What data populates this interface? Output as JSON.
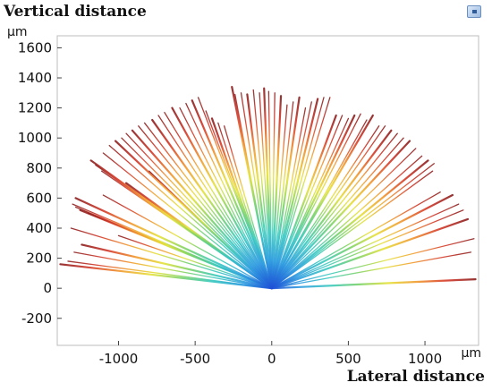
{
  "chart_data": {
    "type": "line",
    "title": "",
    "ylabel": "Vertical distance",
    "yunit": "μm",
    "xlabel": "Lateral distance",
    "xunit": "μm",
    "xlim": [
      -1400,
      1350
    ],
    "ylim": [
      -380,
      1680
    ],
    "xticks": [
      -1000,
      -500,
      0,
      500,
      1000
    ],
    "yticks": [
      -200,
      0,
      200,
      400,
      600,
      800,
      1000,
      1200,
      1400,
      1600
    ],
    "grid": false,
    "colormap": [
      "#1f4fd6",
      "#2f9ee0",
      "#39c9c0",
      "#7ad36a",
      "#e6e23a",
      "#f29a2e",
      "#d63a2a",
      "#8c1f1f"
    ],
    "origin": [
      0,
      0
    ],
    "ray_endpoints": [
      [
        -1380,
        160
      ],
      [
        -1330,
        180
      ],
      [
        -1290,
        240
      ],
      [
        -1240,
        290
      ],
      [
        -1300,
        560
      ],
      [
        -1280,
        540
      ],
      [
        -1250,
        520
      ],
      [
        -1200,
        500
      ],
      [
        -1310,
        400
      ],
      [
        -1280,
        600
      ],
      [
        -1150,
        820
      ],
      [
        -1110,
        780
      ],
      [
        -1180,
        850
      ],
      [
        -1100,
        900
      ],
      [
        -1060,
        950
      ],
      [
        -1020,
        980
      ],
      [
        -980,
        1000
      ],
      [
        -950,
        1030
      ],
      [
        -910,
        1050
      ],
      [
        -870,
        1080
      ],
      [
        -830,
        1100
      ],
      [
        -780,
        1120
      ],
      [
        -740,
        1150
      ],
      [
        -700,
        1170
      ],
      [
        -650,
        1200
      ],
      [
        -600,
        1200
      ],
      [
        -560,
        1230
      ],
      [
        -520,
        1250
      ],
      [
        -480,
        1270
      ],
      [
        -430,
        1180
      ],
      [
        -390,
        1130
      ],
      [
        -350,
        1100
      ],
      [
        -310,
        1080
      ],
      [
        -260,
        1340
      ],
      [
        -240,
        1290
      ],
      [
        -200,
        1300
      ],
      [
        -160,
        1290
      ],
      [
        -120,
        1320
      ],
      [
        -80,
        1300
      ],
      [
        -50,
        1330
      ],
      [
        -20,
        1310
      ],
      [
        20,
        1300
      ],
      [
        60,
        1280
      ],
      [
        100,
        1220
      ],
      [
        140,
        1240
      ],
      [
        180,
        1270
      ],
      [
        220,
        1200
      ],
      [
        260,
        1240
      ],
      [
        300,
        1260
      ],
      [
        340,
        1270
      ],
      [
        380,
        1270
      ],
      [
        420,
        1150
      ],
      [
        460,
        1150
      ],
      [
        500,
        1130
      ],
      [
        540,
        1150
      ],
      [
        580,
        1160
      ],
      [
        620,
        1120
      ],
      [
        660,
        1150
      ],
      [
        700,
        1080
      ],
      [
        740,
        1080
      ],
      [
        780,
        1050
      ],
      [
        820,
        1030
      ],
      [
        860,
        1000
      ],
      [
        900,
        980
      ],
      [
        940,
        930
      ],
      [
        980,
        880
      ],
      [
        1020,
        850
      ],
      [
        1060,
        830
      ],
      [
        1100,
        640
      ],
      [
        1180,
        620
      ],
      [
        1220,
        560
      ],
      [
        1250,
        520
      ],
      [
        1280,
        460
      ],
      [
        1320,
        330
      ],
      [
        1300,
        240
      ],
      [
        1330,
        60
      ],
      [
        1050,
        780
      ],
      [
        -1100,
        620
      ],
      [
        -950,
        700
      ],
      [
        -800,
        780
      ],
      [
        -1000,
        350
      ]
    ]
  }
}
